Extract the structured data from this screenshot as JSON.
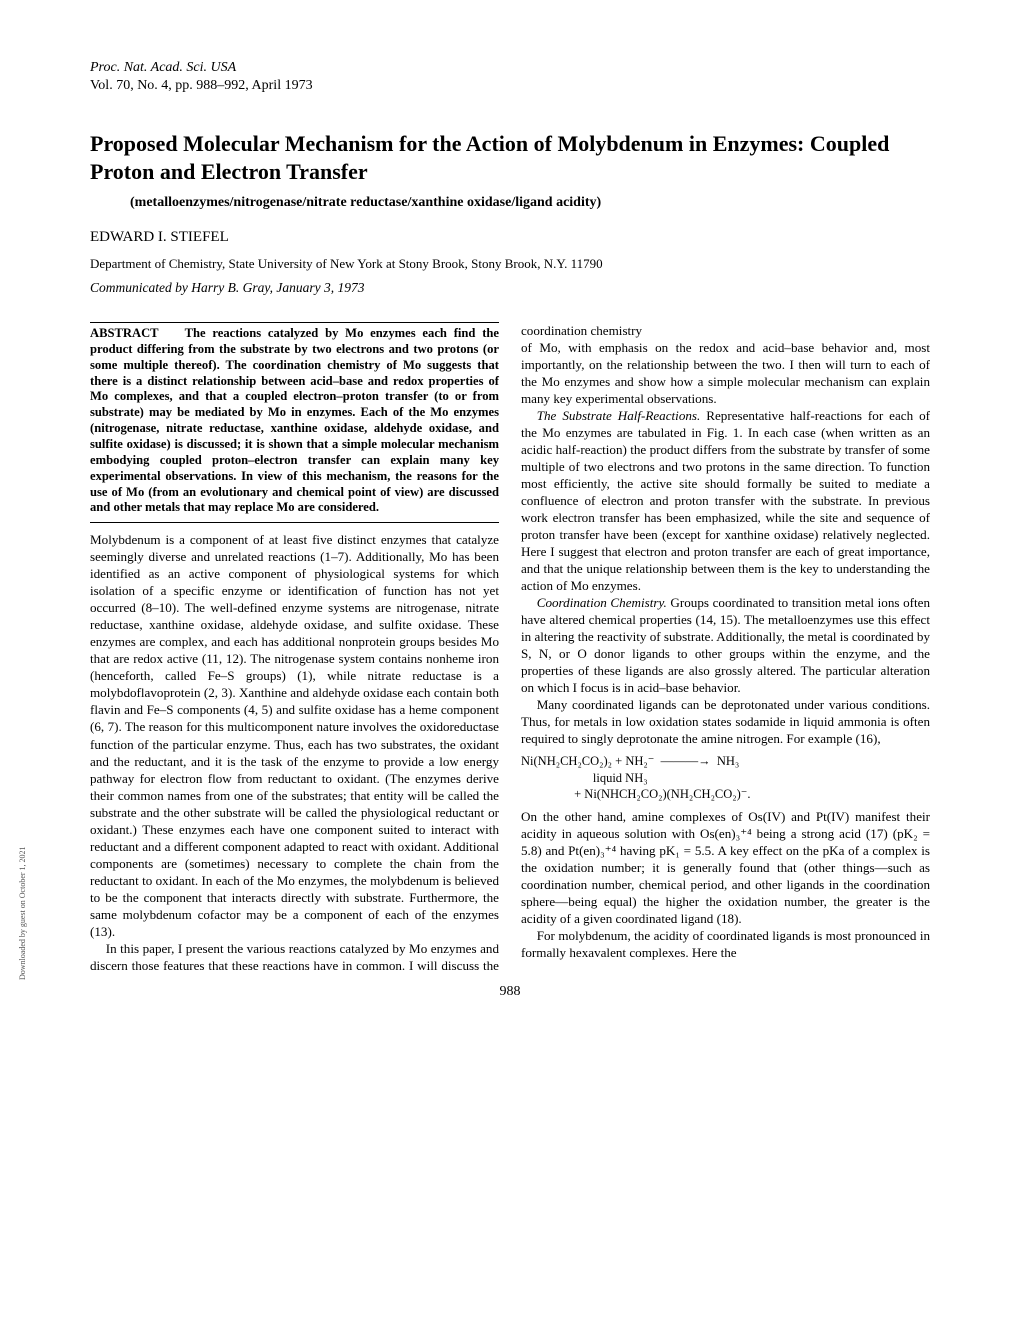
{
  "journal": {
    "line1": "Proc. Nat. Acad. Sci. USA",
    "line2": "Vol. 70, No. 4, pp. 988–992, April 1973"
  },
  "title": "Proposed Molecular Mechanism for the Action of Molybdenum in Enzymes: Coupled Proton and Electron Transfer",
  "keywords": "(metalloenzymes/nitrogenase/nitrate reductase/xanthine oxidase/ligand acidity)",
  "author": "EDWARD I. STIEFEL",
  "affiliation": "Department of Chemistry, State University of New York at Stony Brook, Stony Brook, N.Y. 11790",
  "communicated": "Communicated by Harry B. Gray, January 3, 1973",
  "abstract": {
    "label": "ABSTRACT",
    "text": "The reactions catalyzed by Mo enzymes each find the product differing from the substrate by two electrons and two protons (or some multiple thereof). The coordination chemistry of Mo suggests that there is a distinct relationship between acid–base and redox properties of Mo complexes, and that a coupled electron–proton transfer (to or from substrate) may be mediated by Mo in enzymes. Each of the Mo enzymes (nitrogenase, nitrate reductase, xanthine oxidase, aldehyde oxidase, and sulfite oxidase) is discussed; it is shown that a simple molecular mechanism embodying coupled proton–electron transfer can explain many key experimental observations. In view of this mechanism, the reasons for the use of Mo (from an evolutionary and chemical point of view) are discussed and other metals that may replace Mo are considered."
  },
  "body": {
    "p1": "Molybdenum is a component of at least five distinct enzymes that catalyze seemingly diverse and unrelated reactions (1–7). Additionally, Mo has been identified as an active component of physiological systems for which isolation of a specific enzyme or identification of function has not yet occurred (8–10). The well-defined enzyme systems are nitrogenase, nitrate reductase, xanthine oxidase, aldehyde oxidase, and sulfite oxidase. These enzymes are complex, and each has additional nonprotein groups besides Mo that are redox active (11, 12). The nitrogenase system contains nonheme iron (henceforth, called Fe–S groups) (1), while nitrate reductase is a molybdoflavoprotein (2, 3). Xanthine and aldehyde oxidase each contain both flavin and Fe–S components (4, 5) and sulfite oxidase has a heme component (6, 7). The reason for this multicomponent nature involves the oxidoreductase function of the particular enzyme. Thus, each has two substrates, the oxidant and the reductant, and it is the task of the enzyme to provide a low energy pathway for electron flow from reductant to oxidant. (The enzymes derive their common names from one of the substrates; that entity will be called the substrate and the other substrate will be called the physiological reductant or oxidant.) These enzymes each have one component suited to interact with reductant and a different component adapted to react with oxidant. Additional components are (sometimes) necessary to complete the chain from the reductant to oxidant. In each of the Mo enzymes, the molybdenum is believed to be the component that interacts directly with substrate. Furthermore, the same molybdenum cofactor may be a component of each of the enzymes (13).",
    "p2": "In this paper, I present the various reactions catalyzed by Mo enzymes and discern those features that these reactions have in common. I will discuss the coordination chemistry",
    "p3": "of Mo, with emphasis on the redox and acid–base behavior and, most importantly, on the relationship between the two. I then will turn to each of the Mo enzymes and show how a simple molecular mechanism can explain many key experimental observations.",
    "p4_head": "The Substrate Half-Reactions.",
    "p4": " Representative half-reactions for each of the Mo enzymes are tabulated in Fig. 1. In each case (when written as an acidic half-reaction) the product differs from the substrate by transfer of some multiple of two electrons and two protons in the same direction. To function most efficiently, the active site should formally be suited to mediate a confluence of electron and proton transfer with the substrate. In previous work electron transfer has been emphasized, while the site and sequence of proton transfer have been (except for xanthine oxidase) relatively neglected. Here I suggest that electron and proton transfer are each of great importance, and that the unique relationship between them is the key to understanding the action of Mo enzymes.",
    "p5_head": "Coordination Chemistry.",
    "p5": " Groups coordinated to transition metal ions often have altered chemical properties (14, 15). The metalloenzymes use this effect in altering the reactivity of substrate. Additionally, the metal is coordinated by S, N, or O donor ligands to other groups within the enzyme, and the properties of these ligands are also grossly altered. The particular alteration on which I focus is in acid–base behavior.",
    "p6": "Many coordinated ligands can be deprotonated under various conditions. Thus, for metals in low oxidation states sodamide in liquid ammonia is often required to singly deprotonate the amine nitrogen. For example (16),",
    "eq1": "Ni(NH₂CH₂CO₂)₂ + NH₂⁻  ———→  NH₃\n                       liquid NH₃\n                 + Ni(NHCH₂CO₂)(NH₂CH₂CO₂)⁻.",
    "p7": "On the other hand, amine complexes of Os(IV) and Pt(IV) manifest their acidity in aqueous solution with Os(en)₃⁺⁴ being a strong acid (17) (pK₂ = 5.8) and Pt(en)₃⁺⁴ having pK₁ = 5.5. A key effect on the pKa of a complex is the oxidation number; it is generally found that (other things—such as coordination number, chemical period, and other ligands in the coordination sphere—being equal) the higher the oxidation number, the greater is the acidity of a given coordinated ligand (18).",
    "p8": "For molybdenum, the acidity of coordinated ligands is most pronounced in formally hexavalent complexes. Here the"
  },
  "pagenum": "988",
  "sidenote": "Downloaded by guest on October 1, 2021"
}
